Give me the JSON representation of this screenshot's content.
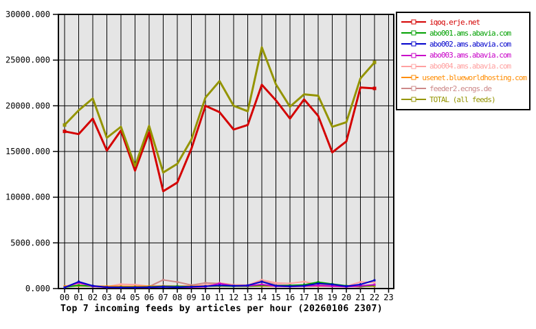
{
  "chart_data": {
    "type": "line",
    "title": "Top 7 incoming feeds by articles per hour (20260106 2307)",
    "x_labels": [
      "00",
      "01",
      "02",
      "03",
      "04",
      "05",
      "06",
      "07",
      "08",
      "09",
      "10",
      "11",
      "12",
      "13",
      "14",
      "15",
      "16",
      "17",
      "18",
      "19",
      "20",
      "21",
      "22",
      "23"
    ],
    "ylim": [
      0,
      30000
    ],
    "y_tick_step": 5000,
    "y_tick_labels": [
      "0.000",
      "5000.000",
      "10000.000",
      "15000.000",
      "20000.000",
      "25000.000",
      "30000.000"
    ],
    "grid": true,
    "legend_position": "right-outside",
    "plot_bg_color": "#e5e5e5",
    "grid_color": "#000000",
    "background_color": "#ffffff",
    "series": [
      {
        "name": "iqoq.erje.net",
        "color": "#d40000",
        "values": [
          17200,
          16900,
          18600,
          15100,
          17300,
          12900,
          17100,
          10650,
          11600,
          15300,
          20000,
          19300,
          17400,
          17900,
          22300,
          20600,
          18600,
          20700,
          18900,
          14900,
          16100,
          22000,
          21900
        ]
      },
      {
        "name": "abo001.ams.abavia.com",
        "color": "#00a000",
        "values": [
          150,
          350,
          250,
          150,
          150,
          150,
          180,
          250,
          250,
          200,
          250,
          300,
          250,
          250,
          350,
          300,
          350,
          400,
          700,
          500,
          300,
          250,
          350
        ]
      },
      {
        "name": "abo002.ams.abavia.com",
        "color": "#0000cc",
        "values": [
          120,
          750,
          300,
          150,
          120,
          120,
          150,
          180,
          150,
          200,
          250,
          350,
          300,
          350,
          750,
          300,
          250,
          300,
          550,
          450,
          250,
          450,
          900
        ]
      },
      {
        "name": "abo003.ams.abavia.com",
        "color": "#c800c8",
        "values": [
          130,
          650,
          250,
          130,
          110,
          110,
          130,
          200,
          160,
          160,
          200,
          550,
          280,
          300,
          450,
          250,
          220,
          260,
          320,
          260,
          200,
          300,
          420
        ]
      },
      {
        "name": "abo004.ams.abavia.com",
        "color": "#ffa0a0",
        "values": [
          250,
          550,
          300,
          220,
          480,
          430,
          260,
          320,
          260,
          320,
          380,
          620,
          420,
          380,
          950,
          620,
          560,
          760,
          420,
          320,
          260,
          720,
          660
        ]
      },
      {
        "name": "usenet.blueworldhosting.com",
        "color": "#ff8c00",
        "values": [
          260,
          290,
          270,
          255,
          255,
          245,
          255,
          265,
          255,
          255,
          265,
          275,
          265,
          255,
          285,
          265,
          255,
          265,
          275,
          255,
          245,
          255,
          265
        ]
      },
      {
        "name": "feeder2.ecngs.de",
        "color": "#cc8888",
        "values": [
          160,
          380,
          220,
          160,
          210,
          190,
          210,
          950,
          720,
          380,
          620,
          560,
          360,
          310,
          820,
          420,
          360,
          310,
          520,
          360,
          310,
          160,
          420
        ]
      },
      {
        "name": "TOTAL (all feeds)",
        "color": "#949400",
        "values": [
          17900,
          19500,
          20800,
          16500,
          17700,
          13400,
          17800,
          12700,
          13650,
          16300,
          20900,
          22700,
          20000,
          19400,
          26400,
          22350,
          19900,
          21250,
          21100,
          17700,
          18200,
          23000,
          24750
        ]
      }
    ]
  }
}
